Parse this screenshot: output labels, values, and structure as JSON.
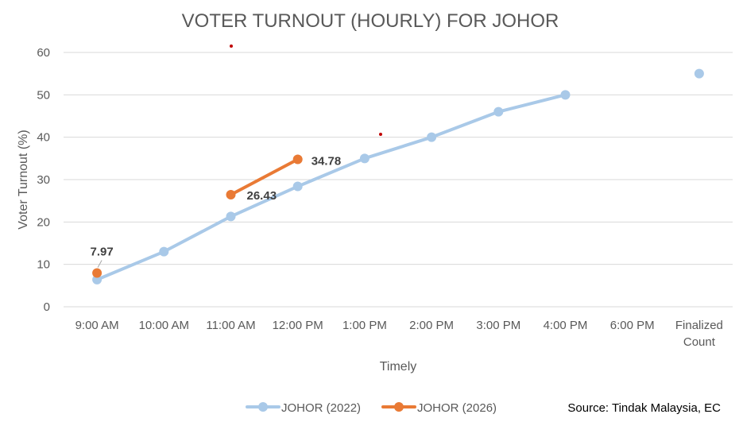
{
  "chart_data": {
    "type": "line",
    "title": "VOTER TURNOUT (HOURLY) FOR JOHOR",
    "xlabel": "Timely",
    "ylabel": "Voter Turnout (%)",
    "categories": [
      "9:00 AM",
      "10:00 AM",
      "11:00 AM",
      "12:00 PM",
      "1:00 PM",
      "2:00 PM",
      "3:00 PM",
      "4:00 PM",
      "6:00 PM",
      "Finalized Count"
    ],
    "ylim": [
      0,
      60
    ],
    "yticks": [
      0,
      10,
      20,
      30,
      40,
      50,
      60
    ],
    "grid": true,
    "legend_position": "bottom",
    "series": [
      {
        "name": "JOHOR (2022)",
        "color": "#A9C9E8",
        "values": [
          6.4,
          13.0,
          21.3,
          28.4,
          35.0,
          40.0,
          46.0,
          50.0,
          null,
          55.0
        ]
      },
      {
        "name": "JOHOR (2026)",
        "color": "#E97A35",
        "values": [
          7.97,
          null,
          26.43,
          34.78,
          null,
          null,
          null,
          null,
          null,
          null
        ],
        "data_labels": [
          "7.97",
          null,
          "26.43",
          "34.78",
          null,
          null,
          null,
          null,
          null,
          null
        ]
      }
    ],
    "source_note": "Source: Tindak Malaysia, EC",
    "annotation_color": "#C00000"
  }
}
